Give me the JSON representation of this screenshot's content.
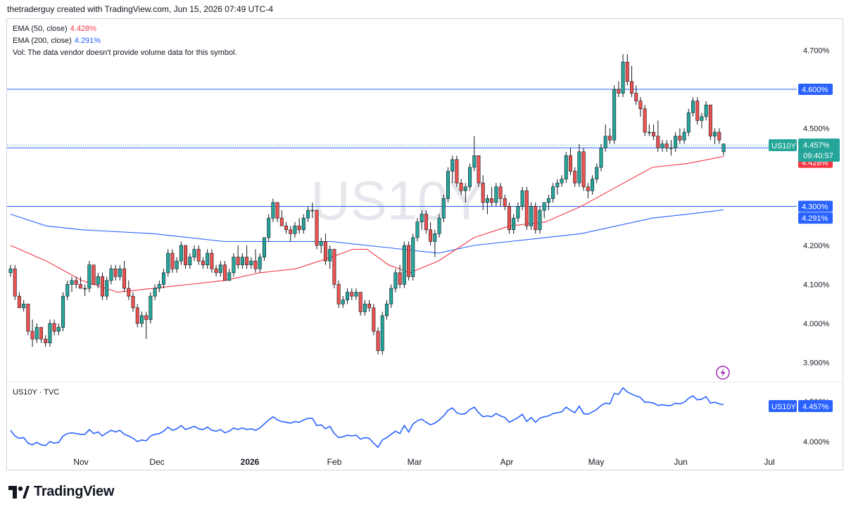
{
  "header": "thetraderguy created with TradingView.com, Jun 15, 2026 07:49 UTC-4",
  "watermark": "US10Y",
  "legend": {
    "ema50": {
      "label": "EMA (50, close)",
      "value": "4.428%",
      "color": "#f23645"
    },
    "ema200": {
      "label": "EMA (200, close)",
      "value": "4.291%",
      "color": "#2962ff"
    },
    "vol": "Vol: The data vendor doesn't provide volume data for this symbol."
  },
  "price_axis": [
    "4.700%",
    "4.600%",
    "4.500%",
    "4.450%",
    "4.428%",
    "4.300%",
    "4.291%",
    "4.200%",
    "4.100%",
    "4.000%",
    "3.900%"
  ],
  "last_price": {
    "symbol": "US10Y",
    "value": "4.457%",
    "countdown": "09:40:57"
  },
  "lower_pane": {
    "title": "US10Y · TVC",
    "symbol": "US10Y",
    "value": "4.457%",
    "axis_label": "4.000%",
    "axis_label_hidden": "4.500%"
  },
  "time_axis": [
    "Nov",
    "Dec",
    "2026",
    "Feb",
    "Mar",
    "Apr",
    "May",
    "Jun",
    "Jul"
  ],
  "logo": "TradingView",
  "colors": {
    "up": "#26a69a",
    "down": "#ef5350",
    "ema50": "#f23645",
    "ema200": "#2962ff",
    "hline": "#2962ff",
    "line": "#2962ff"
  },
  "chart_data": {
    "type": "candlestick",
    "symbol": "US10Y",
    "ylim": [
      3.88,
      4.72
    ],
    "horizontal_lines": [
      4.6,
      4.45,
      4.3
    ],
    "candles": [
      {
        "o": 4.13,
        "h": 4.15,
        "l": 4.12,
        "c": 4.14
      },
      {
        "o": 4.14,
        "h": 4.15,
        "l": 4.06,
        "c": 4.07
      },
      {
        "o": 4.07,
        "h": 4.08,
        "l": 4.04,
        "c": 4.04
      },
      {
        "o": 4.04,
        "h": 4.06,
        "l": 4.03,
        "c": 4.05
      },
      {
        "o": 4.05,
        "h": 4.05,
        "l": 3.97,
        "c": 3.98
      },
      {
        "o": 3.98,
        "h": 4.01,
        "l": 3.94,
        "c": 3.96
      },
      {
        "o": 3.96,
        "h": 4.0,
        "l": 3.95,
        "c": 3.99
      },
      {
        "o": 3.99,
        "h": 3.99,
        "l": 3.95,
        "c": 3.96
      },
      {
        "o": 3.96,
        "h": 3.97,
        "l": 3.94,
        "c": 3.95
      },
      {
        "o": 3.95,
        "h": 4.01,
        "l": 3.94,
        "c": 4.0
      },
      {
        "o": 4.0,
        "h": 4.01,
        "l": 3.97,
        "c": 3.98
      },
      {
        "o": 3.98,
        "h": 4.0,
        "l": 3.97,
        "c": 3.99
      },
      {
        "o": 3.99,
        "h": 4.08,
        "l": 3.98,
        "c": 4.07
      },
      {
        "o": 4.07,
        "h": 4.11,
        "l": 4.06,
        "c": 4.1
      },
      {
        "o": 4.1,
        "h": 4.12,
        "l": 4.08,
        "c": 4.11
      },
      {
        "o": 4.11,
        "h": 4.12,
        "l": 4.09,
        "c": 4.1
      },
      {
        "o": 4.1,
        "h": 4.12,
        "l": 4.09,
        "c": 4.09
      },
      {
        "o": 4.09,
        "h": 4.1,
        "l": 4.07,
        "c": 4.09
      },
      {
        "o": 4.09,
        "h": 4.16,
        "l": 4.08,
        "c": 4.15
      },
      {
        "o": 4.15,
        "h": 4.15,
        "l": 4.1,
        "c": 4.1
      },
      {
        "o": 4.1,
        "h": 4.13,
        "l": 4.09,
        "c": 4.12
      },
      {
        "o": 4.12,
        "h": 4.13,
        "l": 4.06,
        "c": 4.07
      },
      {
        "o": 4.07,
        "h": 4.12,
        "l": 4.06,
        "c": 4.11
      },
      {
        "o": 4.11,
        "h": 4.15,
        "l": 4.1,
        "c": 4.14
      },
      {
        "o": 4.14,
        "h": 4.15,
        "l": 4.11,
        "c": 4.12
      },
      {
        "o": 4.12,
        "h": 4.15,
        "l": 4.11,
        "c": 4.14
      },
      {
        "o": 4.14,
        "h": 4.16,
        "l": 4.08,
        "c": 4.09
      },
      {
        "o": 4.09,
        "h": 4.11,
        "l": 4.06,
        "c": 4.07
      },
      {
        "o": 4.07,
        "h": 4.08,
        "l": 4.03,
        "c": 4.04
      },
      {
        "o": 4.04,
        "h": 4.05,
        "l": 3.99,
        "c": 4.0
      },
      {
        "o": 4.0,
        "h": 4.03,
        "l": 3.99,
        "c": 4.02
      },
      {
        "o": 4.02,
        "h": 4.03,
        "l": 3.96,
        "c": 4.01
      },
      {
        "o": 4.01,
        "h": 4.08,
        "l": 4.0,
        "c": 4.07
      },
      {
        "o": 4.07,
        "h": 4.1,
        "l": 4.06,
        "c": 4.09
      },
      {
        "o": 4.09,
        "h": 4.11,
        "l": 4.08,
        "c": 4.1
      },
      {
        "o": 4.1,
        "h": 4.14,
        "l": 4.09,
        "c": 4.13
      },
      {
        "o": 4.13,
        "h": 4.19,
        "l": 4.12,
        "c": 4.18
      },
      {
        "o": 4.18,
        "h": 4.19,
        "l": 4.13,
        "c": 4.14
      },
      {
        "o": 4.14,
        "h": 4.17,
        "l": 4.13,
        "c": 4.16
      },
      {
        "o": 4.16,
        "h": 4.21,
        "l": 4.15,
        "c": 4.2
      },
      {
        "o": 4.2,
        "h": 4.2,
        "l": 4.14,
        "c": 4.15
      },
      {
        "o": 4.15,
        "h": 4.18,
        "l": 4.14,
        "c": 4.17
      },
      {
        "o": 4.17,
        "h": 4.2,
        "l": 4.16,
        "c": 4.19
      },
      {
        "o": 4.19,
        "h": 4.2,
        "l": 4.15,
        "c": 4.16
      },
      {
        "o": 4.16,
        "h": 4.17,
        "l": 4.14,
        "c": 4.15
      },
      {
        "o": 4.15,
        "h": 4.19,
        "l": 4.14,
        "c": 4.18
      },
      {
        "o": 4.18,
        "h": 4.19,
        "l": 4.13,
        "c": 4.14
      },
      {
        "o": 4.14,
        "h": 4.15,
        "l": 4.12,
        "c": 4.13
      },
      {
        "o": 4.13,
        "h": 4.16,
        "l": 4.12,
        "c": 4.15
      },
      {
        "o": 4.15,
        "h": 4.16,
        "l": 4.11,
        "c": 4.11
      },
      {
        "o": 4.11,
        "h": 4.14,
        "l": 4.11,
        "c": 4.13
      },
      {
        "o": 4.13,
        "h": 4.18,
        "l": 4.12,
        "c": 4.17
      },
      {
        "o": 4.17,
        "h": 4.2,
        "l": 4.14,
        "c": 4.15
      },
      {
        "o": 4.15,
        "h": 4.18,
        "l": 4.14,
        "c": 4.17
      },
      {
        "o": 4.17,
        "h": 4.2,
        "l": 4.14,
        "c": 4.15
      },
      {
        "o": 4.15,
        "h": 4.17,
        "l": 4.14,
        "c": 4.16
      },
      {
        "o": 4.16,
        "h": 4.19,
        "l": 4.13,
        "c": 4.14
      },
      {
        "o": 4.14,
        "h": 4.18,
        "l": 4.13,
        "c": 4.17
      },
      {
        "o": 4.17,
        "h": 4.22,
        "l": 4.16,
        "c": 4.22
      },
      {
        "o": 4.22,
        "h": 4.28,
        "l": 4.21,
        "c": 4.27
      },
      {
        "o": 4.27,
        "h": 4.32,
        "l": 4.26,
        "c": 4.31
      },
      {
        "o": 4.31,
        "h": 4.31,
        "l": 4.26,
        "c": 4.27
      },
      {
        "o": 4.27,
        "h": 4.29,
        "l": 4.25,
        "c": 4.25
      },
      {
        "o": 4.25,
        "h": 4.26,
        "l": 4.23,
        "c": 4.24
      },
      {
        "o": 4.24,
        "h": 4.25,
        "l": 4.21,
        "c": 4.23
      },
      {
        "o": 4.23,
        "h": 4.26,
        "l": 4.22,
        "c": 4.25
      },
      {
        "o": 4.25,
        "h": 4.27,
        "l": 4.23,
        "c": 4.24
      },
      {
        "o": 4.24,
        "h": 4.28,
        "l": 4.23,
        "c": 4.27
      },
      {
        "o": 4.27,
        "h": 4.3,
        "l": 4.26,
        "c": 4.29
      },
      {
        "o": 4.29,
        "h": 4.31,
        "l": 4.27,
        "c": 4.29
      },
      {
        "o": 4.29,
        "h": 4.29,
        "l": 4.19,
        "c": 4.2
      },
      {
        "o": 4.2,
        "h": 4.22,
        "l": 4.18,
        "c": 4.21
      },
      {
        "o": 4.21,
        "h": 4.23,
        "l": 4.15,
        "c": 4.16
      },
      {
        "o": 4.16,
        "h": 4.2,
        "l": 4.14,
        "c": 4.19
      },
      {
        "o": 4.19,
        "h": 4.19,
        "l": 4.09,
        "c": 4.1
      },
      {
        "o": 4.1,
        "h": 4.11,
        "l": 4.04,
        "c": 4.05
      },
      {
        "o": 4.05,
        "h": 4.07,
        "l": 4.04,
        "c": 4.06
      },
      {
        "o": 4.06,
        "h": 4.09,
        "l": 4.05,
        "c": 4.08
      },
      {
        "o": 4.08,
        "h": 4.09,
        "l": 4.06,
        "c": 4.07
      },
      {
        "o": 4.07,
        "h": 4.09,
        "l": 4.06,
        "c": 4.08
      },
      {
        "o": 4.08,
        "h": 4.08,
        "l": 4.02,
        "c": 4.03
      },
      {
        "o": 4.03,
        "h": 4.06,
        "l": 4.02,
        "c": 4.05
      },
      {
        "o": 4.05,
        "h": 4.06,
        "l": 4.03,
        "c": 4.04
      },
      {
        "o": 4.04,
        "h": 4.05,
        "l": 3.97,
        "c": 3.98
      },
      {
        "o": 3.98,
        "h": 3.99,
        "l": 3.92,
        "c": 3.93
      },
      {
        "o": 3.93,
        "h": 4.03,
        "l": 3.92,
        "c": 4.02
      },
      {
        "o": 4.02,
        "h": 4.06,
        "l": 4.01,
        "c": 4.05
      },
      {
        "o": 4.05,
        "h": 4.1,
        "l": 4.04,
        "c": 4.09
      },
      {
        "o": 4.09,
        "h": 4.14,
        "l": 4.08,
        "c": 4.13
      },
      {
        "o": 4.13,
        "h": 4.15,
        "l": 4.09,
        "c": 4.1
      },
      {
        "o": 4.1,
        "h": 4.21,
        "l": 4.09,
        "c": 4.2
      },
      {
        "o": 4.2,
        "h": 4.21,
        "l": 4.11,
        "c": 4.12
      },
      {
        "o": 4.12,
        "h": 4.23,
        "l": 4.11,
        "c": 4.22
      },
      {
        "o": 4.22,
        "h": 4.27,
        "l": 4.21,
        "c": 4.26
      },
      {
        "o": 4.26,
        "h": 4.29,
        "l": 4.24,
        "c": 4.28
      },
      {
        "o": 4.28,
        "h": 4.29,
        "l": 4.23,
        "c": 4.24
      },
      {
        "o": 4.24,
        "h": 4.26,
        "l": 4.2,
        "c": 4.21
      },
      {
        "o": 4.21,
        "h": 4.24,
        "l": 4.17,
        "c": 4.23
      },
      {
        "o": 4.23,
        "h": 4.28,
        "l": 4.22,
        "c": 4.27
      },
      {
        "o": 4.27,
        "h": 4.33,
        "l": 4.26,
        "c": 4.32
      },
      {
        "o": 4.32,
        "h": 4.4,
        "l": 4.31,
        "c": 4.39
      },
      {
        "o": 4.39,
        "h": 4.43,
        "l": 4.36,
        "c": 4.42
      },
      {
        "o": 4.42,
        "h": 4.43,
        "l": 4.35,
        "c": 4.36
      },
      {
        "o": 4.36,
        "h": 4.37,
        "l": 4.33,
        "c": 4.34
      },
      {
        "o": 4.34,
        "h": 4.36,
        "l": 4.31,
        "c": 4.35
      },
      {
        "o": 4.35,
        "h": 4.41,
        "l": 4.34,
        "c": 4.4
      },
      {
        "o": 4.4,
        "h": 4.48,
        "l": 4.39,
        "c": 4.43
      },
      {
        "o": 4.43,
        "h": 4.43,
        "l": 4.35,
        "c": 4.36
      },
      {
        "o": 4.36,
        "h": 4.38,
        "l": 4.29,
        "c": 4.31
      },
      {
        "o": 4.31,
        "h": 4.33,
        "l": 4.28,
        "c": 4.32
      },
      {
        "o": 4.32,
        "h": 4.35,
        "l": 4.3,
        "c": 4.31
      },
      {
        "o": 4.31,
        "h": 4.36,
        "l": 4.3,
        "c": 4.35
      },
      {
        "o": 4.35,
        "h": 4.36,
        "l": 4.3,
        "c": 4.32
      },
      {
        "o": 4.32,
        "h": 4.33,
        "l": 4.29,
        "c": 4.3
      },
      {
        "o": 4.3,
        "h": 4.31,
        "l": 4.23,
        "c": 4.24
      },
      {
        "o": 4.24,
        "h": 4.28,
        "l": 4.23,
        "c": 4.27
      },
      {
        "o": 4.27,
        "h": 4.31,
        "l": 4.26,
        "c": 4.3
      },
      {
        "o": 4.3,
        "h": 4.35,
        "l": 4.29,
        "c": 4.34
      },
      {
        "o": 4.34,
        "h": 4.35,
        "l": 4.24,
        "c": 4.25
      },
      {
        "o": 4.25,
        "h": 4.31,
        "l": 4.24,
        "c": 4.3
      },
      {
        "o": 4.3,
        "h": 4.31,
        "l": 4.23,
        "c": 4.24
      },
      {
        "o": 4.24,
        "h": 4.3,
        "l": 4.23,
        "c": 4.29
      },
      {
        "o": 4.29,
        "h": 4.31,
        "l": 4.27,
        "c": 4.31
      },
      {
        "o": 4.31,
        "h": 4.33,
        "l": 4.29,
        "c": 4.32
      },
      {
        "o": 4.32,
        "h": 4.36,
        "l": 4.31,
        "c": 4.35
      },
      {
        "o": 4.35,
        "h": 4.37,
        "l": 4.33,
        "c": 4.36
      },
      {
        "o": 4.36,
        "h": 4.38,
        "l": 4.35,
        "c": 4.37
      },
      {
        "o": 4.37,
        "h": 4.44,
        "l": 4.36,
        "c": 4.43
      },
      {
        "o": 4.43,
        "h": 4.45,
        "l": 4.38,
        "c": 4.39
      },
      {
        "o": 4.39,
        "h": 4.4,
        "l": 4.35,
        "c": 4.36
      },
      {
        "o": 4.36,
        "h": 4.46,
        "l": 4.35,
        "c": 4.44
      },
      {
        "o": 4.44,
        "h": 4.45,
        "l": 4.34,
        "c": 4.35
      },
      {
        "o": 4.35,
        "h": 4.36,
        "l": 4.32,
        "c": 4.34
      },
      {
        "o": 4.34,
        "h": 4.38,
        "l": 4.33,
        "c": 4.37
      },
      {
        "o": 4.37,
        "h": 4.41,
        "l": 4.36,
        "c": 4.4
      },
      {
        "o": 4.4,
        "h": 4.46,
        "l": 4.39,
        "c": 4.45
      },
      {
        "o": 4.45,
        "h": 4.51,
        "l": 4.44,
        "c": 4.48
      },
      {
        "o": 4.48,
        "h": 4.5,
        "l": 4.46,
        "c": 4.47
      },
      {
        "o": 4.47,
        "h": 4.61,
        "l": 4.46,
        "c": 4.6
      },
      {
        "o": 4.6,
        "h": 4.62,
        "l": 4.58,
        "c": 4.59
      },
      {
        "o": 4.59,
        "h": 4.69,
        "l": 4.58,
        "c": 4.67
      },
      {
        "o": 4.67,
        "h": 4.69,
        "l": 4.61,
        "c": 4.62
      },
      {
        "o": 4.62,
        "h": 4.66,
        "l": 4.58,
        "c": 4.59
      },
      {
        "o": 4.59,
        "h": 4.61,
        "l": 4.56,
        "c": 4.57
      },
      {
        "o": 4.57,
        "h": 4.58,
        "l": 4.53,
        "c": 4.55
      },
      {
        "o": 4.55,
        "h": 4.56,
        "l": 4.48,
        "c": 4.49
      },
      {
        "o": 4.49,
        "h": 4.51,
        "l": 4.48,
        "c": 4.49
      },
      {
        "o": 4.49,
        "h": 4.51,
        "l": 4.47,
        "c": 4.48
      },
      {
        "o": 4.48,
        "h": 4.52,
        "l": 4.44,
        "c": 4.45
      },
      {
        "o": 4.45,
        "h": 4.47,
        "l": 4.44,
        "c": 4.46
      },
      {
        "o": 4.46,
        "h": 4.47,
        "l": 4.44,
        "c": 4.45
      },
      {
        "o": 4.45,
        "h": 4.47,
        "l": 4.43,
        "c": 4.45
      },
      {
        "o": 4.45,
        "h": 4.49,
        "l": 4.44,
        "c": 4.48
      },
      {
        "o": 4.48,
        "h": 4.5,
        "l": 4.46,
        "c": 4.47
      },
      {
        "o": 4.47,
        "h": 4.5,
        "l": 4.46,
        "c": 4.49
      },
      {
        "o": 4.49,
        "h": 4.55,
        "l": 4.48,
        "c": 4.54
      },
      {
        "o": 4.54,
        "h": 4.58,
        "l": 4.53,
        "c": 4.57
      },
      {
        "o": 4.57,
        "h": 4.58,
        "l": 4.51,
        "c": 4.52
      },
      {
        "o": 4.52,
        "h": 4.54,
        "l": 4.5,
        "c": 4.53
      },
      {
        "o": 4.53,
        "h": 4.57,
        "l": 4.52,
        "c": 4.56
      },
      {
        "o": 4.56,
        "h": 4.56,
        "l": 4.47,
        "c": 4.48
      },
      {
        "o": 4.48,
        "h": 4.5,
        "l": 4.46,
        "c": 4.49
      },
      {
        "o": 4.49,
        "h": 4.5,
        "l": 4.46,
        "c": 4.47
      },
      {
        "o": 4.44,
        "h": 4.46,
        "l": 4.43,
        "c": 4.46
      }
    ],
    "ema50": [
      [
        0,
        4.2
      ],
      [
        0.05,
        4.16
      ],
      [
        0.1,
        4.11
      ],
      [
        0.15,
        4.08
      ],
      [
        0.2,
        4.09
      ],
      [
        0.25,
        4.1
      ],
      [
        0.3,
        4.11
      ],
      [
        0.35,
        4.13
      ],
      [
        0.4,
        4.14
      ],
      [
        0.45,
        4.17
      ],
      [
        0.48,
        4.19
      ],
      [
        0.5,
        4.19
      ],
      [
        0.53,
        4.15
      ],
      [
        0.56,
        4.13
      ],
      [
        0.6,
        4.16
      ],
      [
        0.65,
        4.22
      ],
      [
        0.7,
        4.25
      ],
      [
        0.75,
        4.26
      ],
      [
        0.8,
        4.3
      ],
      [
        0.85,
        4.35
      ],
      [
        0.9,
        4.4
      ],
      [
        0.95,
        4.41
      ],
      [
        1,
        4.428
      ]
    ],
    "ema200": [
      [
        0,
        4.28
      ],
      [
        0.05,
        4.25
      ],
      [
        0.1,
        4.24
      ],
      [
        0.2,
        4.23
      ],
      [
        0.3,
        4.21
      ],
      [
        0.4,
        4.21
      ],
      [
        0.45,
        4.21
      ],
      [
        0.5,
        4.2
      ],
      [
        0.55,
        4.19
      ],
      [
        0.6,
        4.18
      ],
      [
        0.65,
        4.2
      ],
      [
        0.7,
        4.21
      ],
      [
        0.75,
        4.22
      ],
      [
        0.8,
        4.23
      ],
      [
        0.85,
        4.25
      ],
      [
        0.9,
        4.27
      ],
      [
        0.95,
        4.28
      ],
      [
        1,
        4.291
      ]
    ]
  }
}
